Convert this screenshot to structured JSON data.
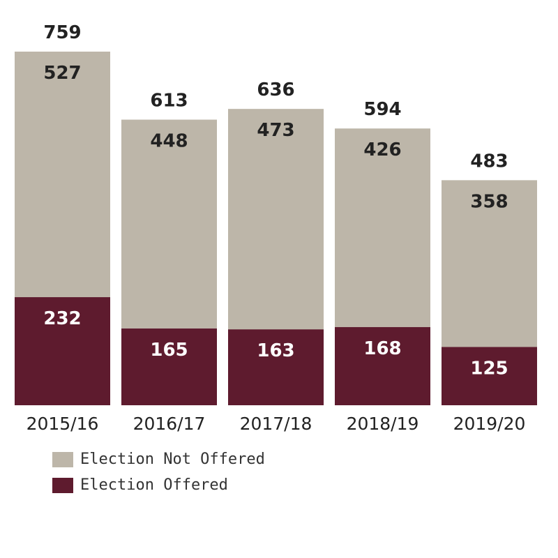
{
  "chart_data": {
    "type": "bar",
    "stacked": true,
    "categories": [
      "2015/16",
      "2016/17",
      "2017/18",
      "2018/19",
      "2019/20"
    ],
    "series": [
      {
        "name": "Election Offered",
        "values": [
          232,
          165,
          163,
          168,
          125
        ],
        "color": "#5E1B2E",
        "label_color": "#FFFFFF"
      },
      {
        "name": "Election Not Offered",
        "values": [
          527,
          448,
          473,
          426,
          358
        ],
        "color": "#BDB6A9",
        "label_color": "#222222"
      }
    ],
    "totals": [
      759,
      613,
      636,
      594,
      483
    ],
    "ylim": [
      0,
      759
    ],
    "grid": false,
    "y_axis_shown": false,
    "legend_position": "bottom-left",
    "legend": [
      "Election Not Offered",
      "Election Offered"
    ]
  }
}
